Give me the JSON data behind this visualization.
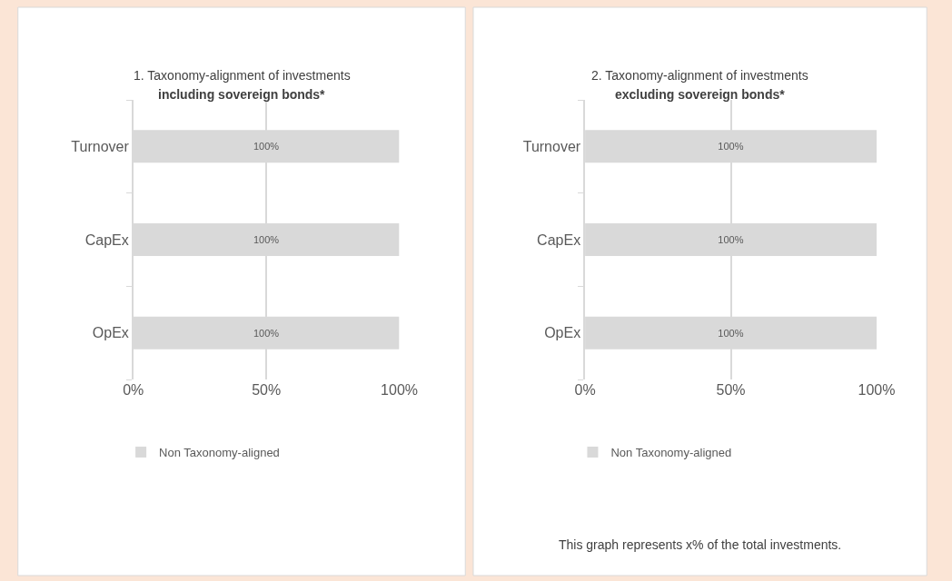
{
  "chart_data": [
    {
      "type": "bar",
      "orientation": "horizontal",
      "title": "1. Taxonomy-alignment of investments",
      "subtitle": "including sovereign bonds*",
      "categories": [
        "Turnover",
        "CapEx",
        "OpEx"
      ],
      "series": [
        {
          "name": "Non Taxonomy-aligned",
          "color": "#d9d9d9",
          "values": [
            100,
            100,
            100
          ],
          "value_labels": [
            "100%",
            "100%",
            "100%"
          ]
        }
      ],
      "xlim": [
        0,
        100
      ],
      "xticks": [
        {
          "value": 0,
          "label": "0%"
        },
        {
          "value": 50,
          "label": "50%"
        },
        {
          "value": 100,
          "label": "100%"
        }
      ],
      "grid": "x",
      "legend": "bottom"
    },
    {
      "type": "bar",
      "orientation": "horizontal",
      "title": "2. Taxonomy-alignment of investments",
      "subtitle": "excluding sovereign bonds*",
      "categories": [
        "Turnover",
        "CapEx",
        "OpEx"
      ],
      "series": [
        {
          "name": "Non Taxonomy-aligned",
          "color": "#d9d9d9",
          "values": [
            100,
            100,
            100
          ],
          "value_labels": [
            "100%",
            "100%",
            "100%"
          ]
        }
      ],
      "xlim": [
        0,
        100
      ],
      "xticks": [
        {
          "value": 0,
          "label": "0%"
        },
        {
          "value": 50,
          "label": "50%"
        },
        {
          "value": 100,
          "label": "100%"
        }
      ],
      "grid": "x",
      "legend": "bottom",
      "annotations": [
        "This graph represents x% of the total investments."
      ]
    }
  ]
}
